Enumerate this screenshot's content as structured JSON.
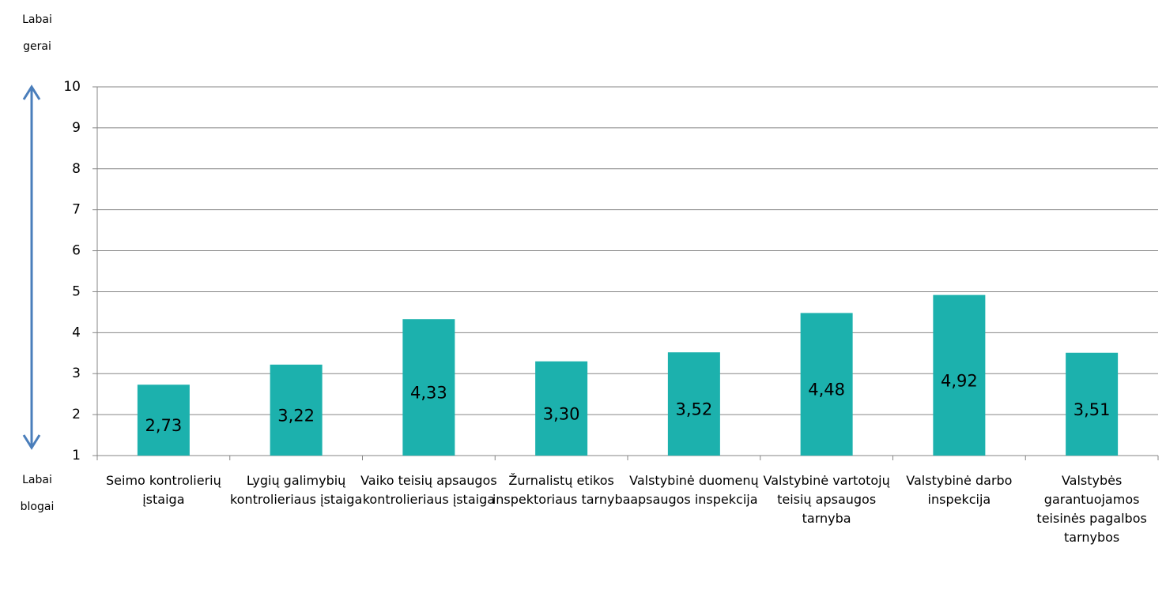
{
  "chart_data": {
    "type": "bar",
    "annotations": [
      "Labai gerai",
      "Labai blogai"
    ],
    "categories": [
      "Seimo kontrolierių įstaiga",
      "Lygių galimybių kontrolieriaus įstaiga",
      "Vaiko teisių apsaugos kontrolieriaus įstaiga",
      "Žurnalistų etikos inspektoriaus tarnyba",
      "Valstybinė duomenų apsaugos inspekcija",
      "Valstybinė vartotojų teisių apsaugos tarnyba",
      "Valstybinė darbo inspekcija",
      "Valstybės garantuojamos teisinės pagalbos tarnybos"
    ],
    "values": [
      2.73,
      3.22,
      4.33,
      3.3,
      3.52,
      4.48,
      4.92,
      3.51
    ],
    "value_labels": [
      "2,73",
      "3,22",
      "4,33",
      "3,30",
      "3,52",
      "4,48",
      "4,92",
      "3,51"
    ],
    "color": "#1cb1ad",
    "ylim": [
      1,
      10
    ],
    "yticks": [
      1,
      2,
      3,
      4,
      5,
      6,
      7,
      8,
      9,
      10
    ],
    "grid": true
  }
}
